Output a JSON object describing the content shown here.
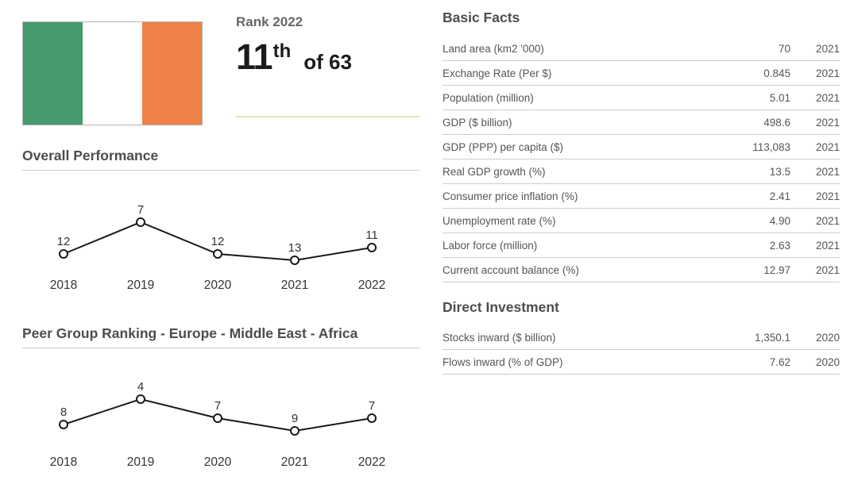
{
  "flag": {
    "country": "Ireland",
    "stripe_colors": [
      "#469a6b",
      "#ffffff",
      "#ed8147"
    ]
  },
  "rank": {
    "label": "Rank 2022",
    "value": "11",
    "suffix": "th",
    "of_total": "of 63",
    "underline_color": "#e0e6b3"
  },
  "sections": {
    "overall_performance_title": "Overall Performance",
    "peer_group_title": "Peer Group Ranking - Europe - Middle East - Africa",
    "basic_facts_title": "Basic Facts",
    "direct_investment_title": "Direct Investment"
  },
  "basic_facts": {
    "rows": [
      {
        "label": "Land area (km2 '000)",
        "value": "70",
        "year": "2021"
      },
      {
        "label": "Exchange Rate (Per $)",
        "value": "0.845",
        "year": "2021"
      },
      {
        "label": "Population (million)",
        "value": "5.01",
        "year": "2021"
      },
      {
        "label": "GDP ($ billion)",
        "value": "498.6",
        "year": "2021"
      },
      {
        "label": "GDP (PPP) per capita ($)",
        "value": "113,083",
        "year": "2021"
      },
      {
        "label": "Real GDP growth (%)",
        "value": "13.5",
        "year": "2021"
      },
      {
        "label": "Consumer price inflation (%)",
        "value": "2.41",
        "year": "2021"
      },
      {
        "label": "Unemployment rate (%)",
        "value": "4.90",
        "year": "2021"
      },
      {
        "label": "Labor force (million)",
        "value": "2.63",
        "year": "2021"
      },
      {
        "label": "Current account balance (%)",
        "value": "12.97",
        "year": "2021"
      }
    ]
  },
  "direct_investment": {
    "rows": [
      {
        "label": "Stocks inward ($ billion)",
        "value": "1,350.1",
        "year": "2020"
      },
      {
        "label": "Flows inward (% of GDP)",
        "value": "7.62",
        "year": "2020"
      }
    ]
  },
  "chart_data": [
    {
      "type": "line",
      "title": "Overall Performance",
      "x": [
        "2018",
        "2019",
        "2020",
        "2021",
        "2022"
      ],
      "values": [
        12,
        7,
        12,
        13,
        11
      ],
      "marker": "open-circle",
      "line_color": "#1a1a1a",
      "data_labels": true,
      "axes_hidden": true,
      "y_inverted_rank_scale": true
    },
    {
      "type": "line",
      "title": "Peer Group Ranking - Europe - Middle East - Africa",
      "x": [
        "2018",
        "2019",
        "2020",
        "2021",
        "2022"
      ],
      "values": [
        8,
        4,
        7,
        9,
        7
      ],
      "marker": "open-circle",
      "line_color": "#1a1a1a",
      "data_labels": true,
      "axes_hidden": true,
      "y_inverted_rank_scale": true
    }
  ]
}
